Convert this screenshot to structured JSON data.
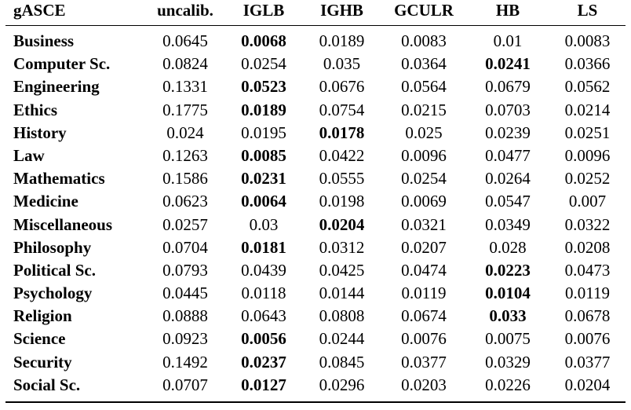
{
  "colors": {
    "text": "#000000",
    "background": "#ffffff",
    "rule": "#000000"
  },
  "chart_data": {
    "type": "table",
    "metric_label": "gASCE",
    "columns": [
      "gASCE",
      "uncalib.",
      "IGLB",
      "IGHB",
      "GCULR",
      "HB",
      "LS"
    ],
    "bold_meaning": "best (lowest) calibration error per row",
    "rows": [
      {
        "label": "Business",
        "values": [
          "0.0645",
          "0.0068",
          "0.0189",
          "0.0083",
          "0.01",
          "0.0083"
        ],
        "best_index": 1
      },
      {
        "label": "Computer Sc.",
        "values": [
          "0.0824",
          "0.0254",
          "0.035",
          "0.0364",
          "0.0241",
          "0.0366"
        ],
        "best_index": 4
      },
      {
        "label": "Engineering",
        "values": [
          "0.1331",
          "0.0523",
          "0.0676",
          "0.0564",
          "0.0679",
          "0.0562"
        ],
        "best_index": 1
      },
      {
        "label": "Ethics",
        "values": [
          "0.1775",
          "0.0189",
          "0.0754",
          "0.0215",
          "0.0703",
          "0.0214"
        ],
        "best_index": 1
      },
      {
        "label": "History",
        "values": [
          "0.024",
          "0.0195",
          "0.0178",
          "0.025",
          "0.0239",
          "0.0251"
        ],
        "best_index": 2
      },
      {
        "label": "Law",
        "values": [
          "0.1263",
          "0.0085",
          "0.0422",
          "0.0096",
          "0.0477",
          "0.0096"
        ],
        "best_index": 1
      },
      {
        "label": "Mathematics",
        "values": [
          "0.1586",
          "0.0231",
          "0.0555",
          "0.0254",
          "0.0264",
          "0.0252"
        ],
        "best_index": 1
      },
      {
        "label": "Medicine",
        "values": [
          "0.0623",
          "0.0064",
          "0.0198",
          "0.0069",
          "0.0547",
          "0.007"
        ],
        "best_index": 1
      },
      {
        "label": "Miscellaneous",
        "values": [
          "0.0257",
          "0.03",
          "0.0204",
          "0.0321",
          "0.0349",
          "0.0322"
        ],
        "best_index": 2
      },
      {
        "label": "Philosophy",
        "values": [
          "0.0704",
          "0.0181",
          "0.0312",
          "0.0207",
          "0.028",
          "0.0208"
        ],
        "best_index": 1
      },
      {
        "label": "Political Sc.",
        "values": [
          "0.0793",
          "0.0439",
          "0.0425",
          "0.0474",
          "0.0223",
          "0.0473"
        ],
        "best_index": 4
      },
      {
        "label": "Psychology",
        "values": [
          "0.0445",
          "0.0118",
          "0.0144",
          "0.0119",
          "0.0104",
          "0.0119"
        ],
        "best_index": 4
      },
      {
        "label": "Religion",
        "values": [
          "0.0888",
          "0.0643",
          "0.0808",
          "0.0674",
          "0.033",
          "0.0678"
        ],
        "best_index": 4
      },
      {
        "label": "Science",
        "values": [
          "0.0923",
          "0.0056",
          "0.0244",
          "0.0076",
          "0.0075",
          "0.0076"
        ],
        "best_index": 1
      },
      {
        "label": "Security",
        "values": [
          "0.1492",
          "0.0237",
          "0.0845",
          "0.0377",
          "0.0329",
          "0.0377"
        ],
        "best_index": 1
      },
      {
        "label": "Social Sc.",
        "values": [
          "0.0707",
          "0.0127",
          "0.0296",
          "0.0203",
          "0.0226",
          "0.0204"
        ],
        "best_index": 1
      }
    ]
  }
}
